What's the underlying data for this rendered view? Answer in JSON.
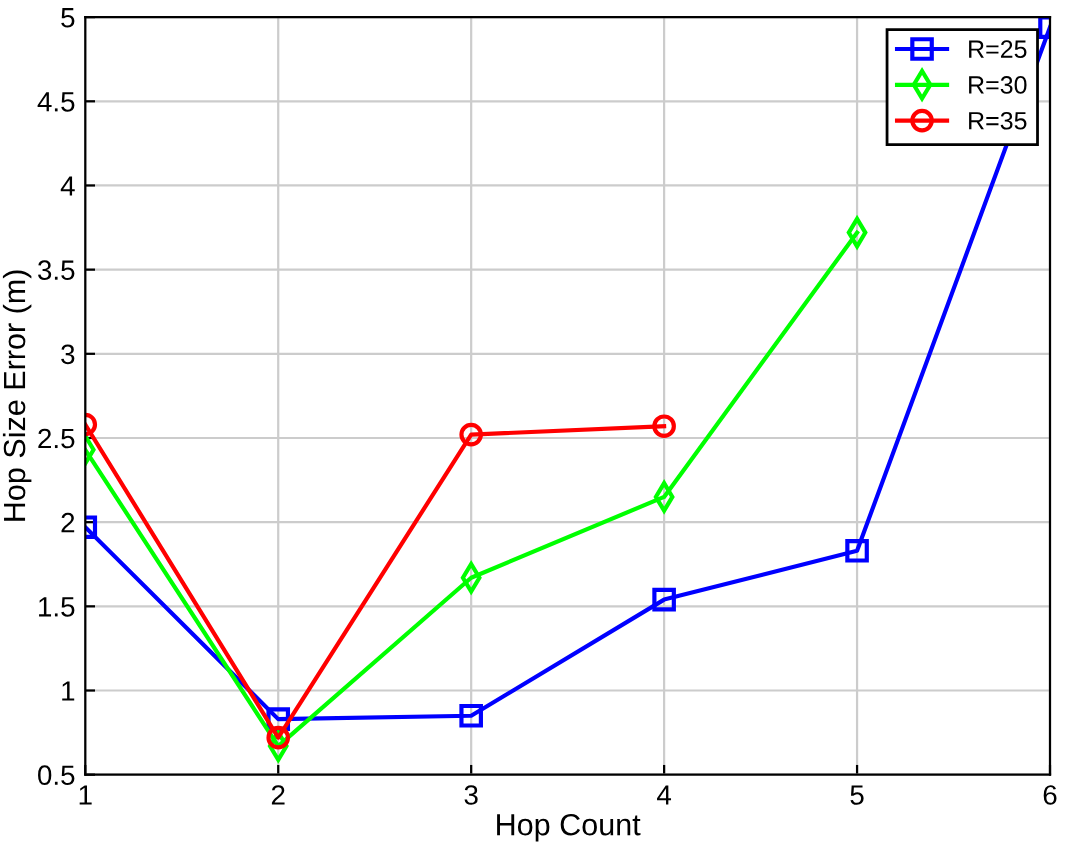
{
  "chart_data": {
    "type": "line",
    "xlabel": "Hop Count",
    "ylabel": "Hop Size Error (m)",
    "xlim": [
      1,
      6
    ],
    "xticks": [
      1,
      2,
      3,
      4,
      5,
      6
    ],
    "ylim": [
      0.5,
      5
    ],
    "yticks": [
      0.5,
      1,
      1.5,
      2,
      2.5,
      3,
      3.5,
      4,
      4.5,
      5
    ],
    "grid": true,
    "legend": "top right",
    "line_style": "solid",
    "series": [
      {
        "name": "R=25",
        "color": "#0000ff",
        "marker": "square",
        "x": [
          1,
          2,
          3,
          4,
          5,
          6
        ],
        "values": [
          1.97,
          0.83,
          0.85,
          1.54,
          1.83,
          4.94
        ]
      },
      {
        "name": "R=30",
        "color": "#00ff00",
        "marker": "diamond",
        "x": [
          1,
          2,
          3,
          4,
          5
        ],
        "values": [
          2.43,
          0.67,
          1.67,
          2.15,
          3.72
        ]
      },
      {
        "name": "R=35",
        "color": "#ff0000",
        "marker": "circle",
        "x": [
          1,
          2,
          3,
          4
        ],
        "values": [
          2.58,
          0.72,
          2.52,
          2.57
        ]
      }
    ]
  }
}
